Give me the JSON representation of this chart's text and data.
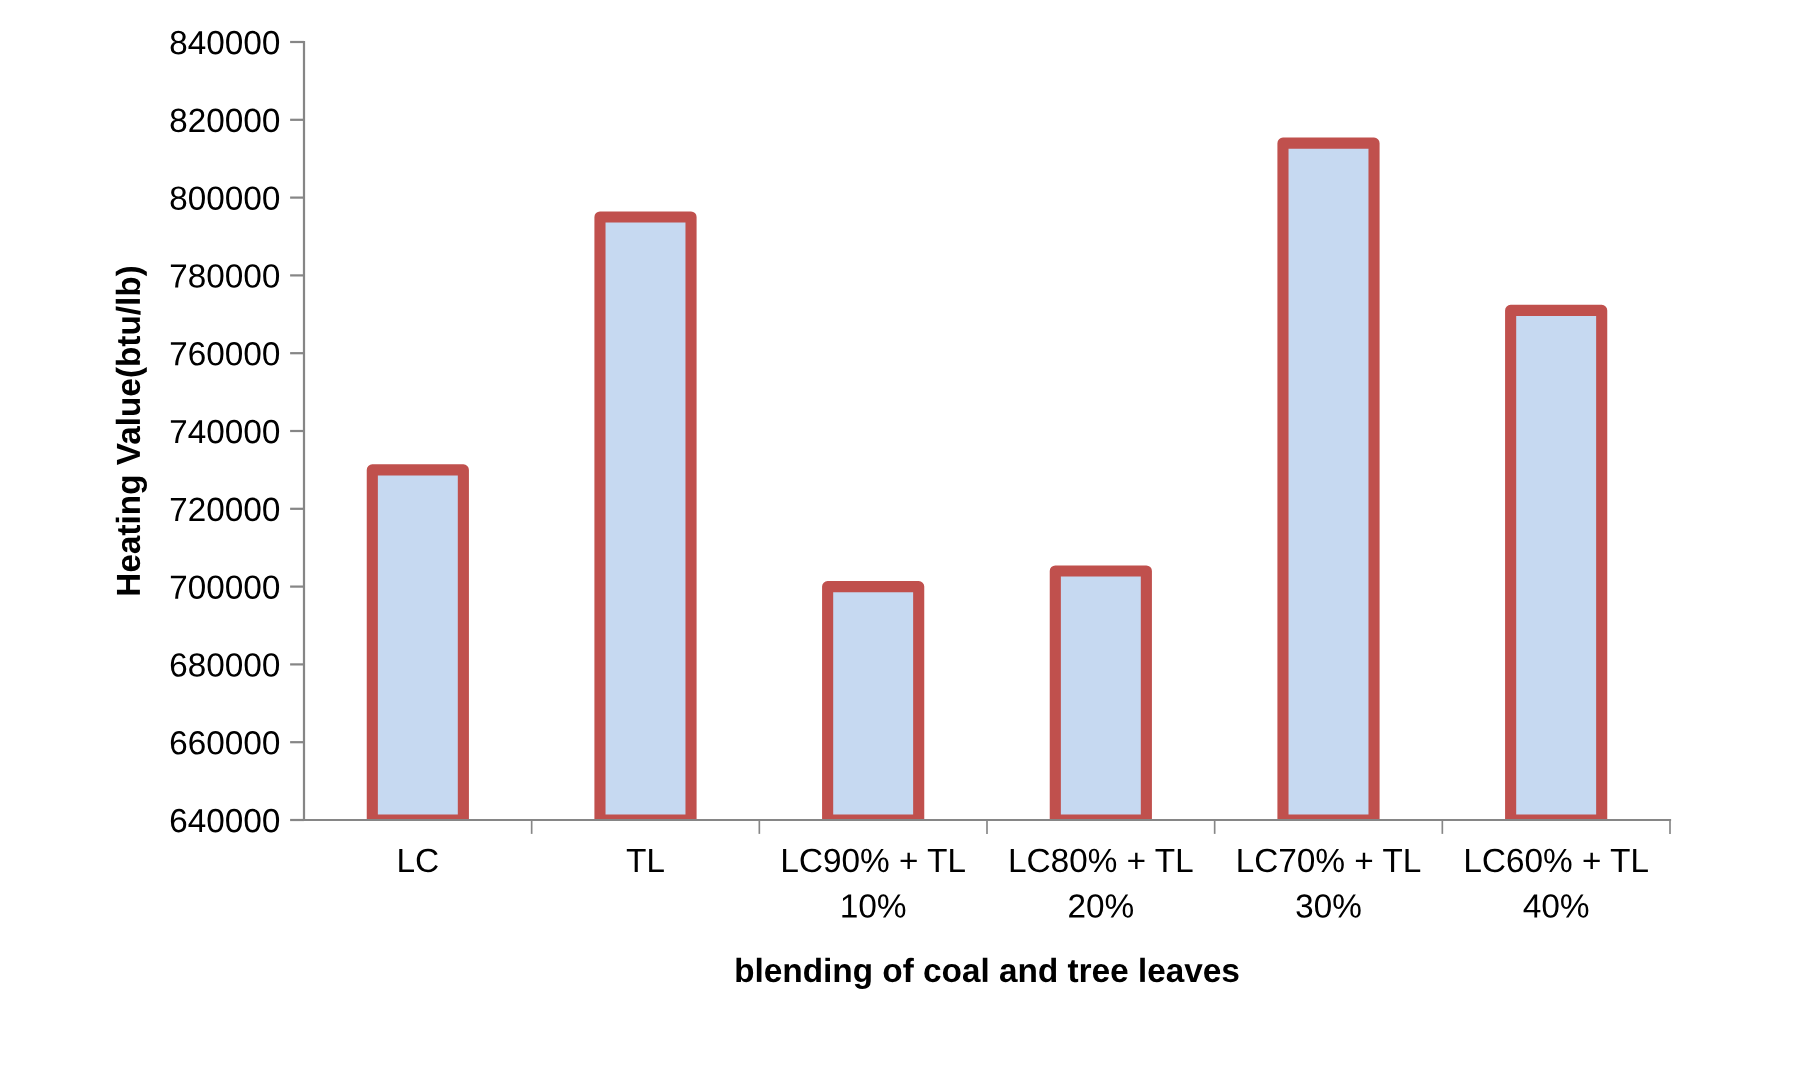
{
  "chart_data": {
    "type": "bar",
    "xlabel": "blending of coal and tree leaves",
    "ylabel": "Heating Value(btu/lb)",
    "categories": [
      "LC",
      "TL",
      "LC90% + TL 10%",
      "LC80% + TL 20%",
      "LC70% + TL 30%",
      "LC60% + TL 40%"
    ],
    "series": [
      {
        "color": "#c6d9f1",
        "values": [
          730000,
          795000,
          700000,
          704000,
          814000,
          771000
        ]
      }
    ],
    "ylim": [
      640000,
      840000
    ],
    "yticks": [
      640000,
      660000,
      680000,
      700000,
      720000,
      740000,
      760000,
      780000,
      800000,
      820000,
      840000
    ],
    "grid": false,
    "legend": false
  }
}
